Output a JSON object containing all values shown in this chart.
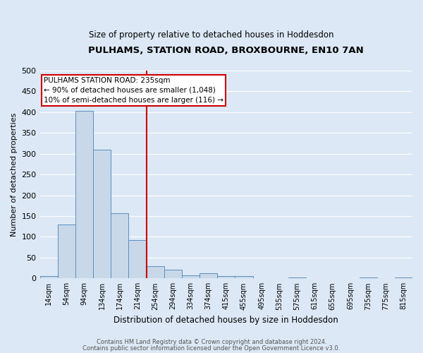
{
  "title": "PULHAMS, STATION ROAD, BROXBOURNE, EN10 7AN",
  "subtitle": "Size of property relative to detached houses in Hoddesdon",
  "xlabel": "Distribution of detached houses by size in Hoddesdon",
  "ylabel": "Number of detached properties",
  "bar_labels": [
    "14sqm",
    "54sqm",
    "94sqm",
    "134sqm",
    "174sqm",
    "214sqm",
    "254sqm",
    "294sqm",
    "334sqm",
    "374sqm",
    "415sqm",
    "455sqm",
    "495sqm",
    "535sqm",
    "575sqm",
    "615sqm",
    "655sqm",
    "695sqm",
    "735sqm",
    "775sqm",
    "815sqm"
  ],
  "bar_values": [
    6,
    130,
    403,
    310,
    157,
    93,
    30,
    21,
    7,
    13,
    5,
    6,
    0,
    0,
    2,
    0,
    0,
    0,
    3,
    0,
    2
  ],
  "bar_color": "#c8d8e8",
  "bar_edge_color": "#5a8fc0",
  "vline_x": 5.5,
  "vline_color": "#cc0000",
  "annotation_title": "PULHAMS STATION ROAD: 235sqm",
  "annotation_line1": "← 90% of detached houses are smaller (1,048)",
  "annotation_line2": "10% of semi-detached houses are larger (116) →",
  "annotation_box_color": "#cc0000",
  "ylim": [
    0,
    500
  ],
  "yticks": [
    0,
    50,
    100,
    150,
    200,
    250,
    300,
    350,
    400,
    450,
    500
  ],
  "footer1": "Contains HM Land Registry data © Crown copyright and database right 2024.",
  "footer2": "Contains public sector information licensed under the Open Government Licence v3.0.",
  "bg_color": "#dce8f5",
  "grid_color": "#ffffff"
}
